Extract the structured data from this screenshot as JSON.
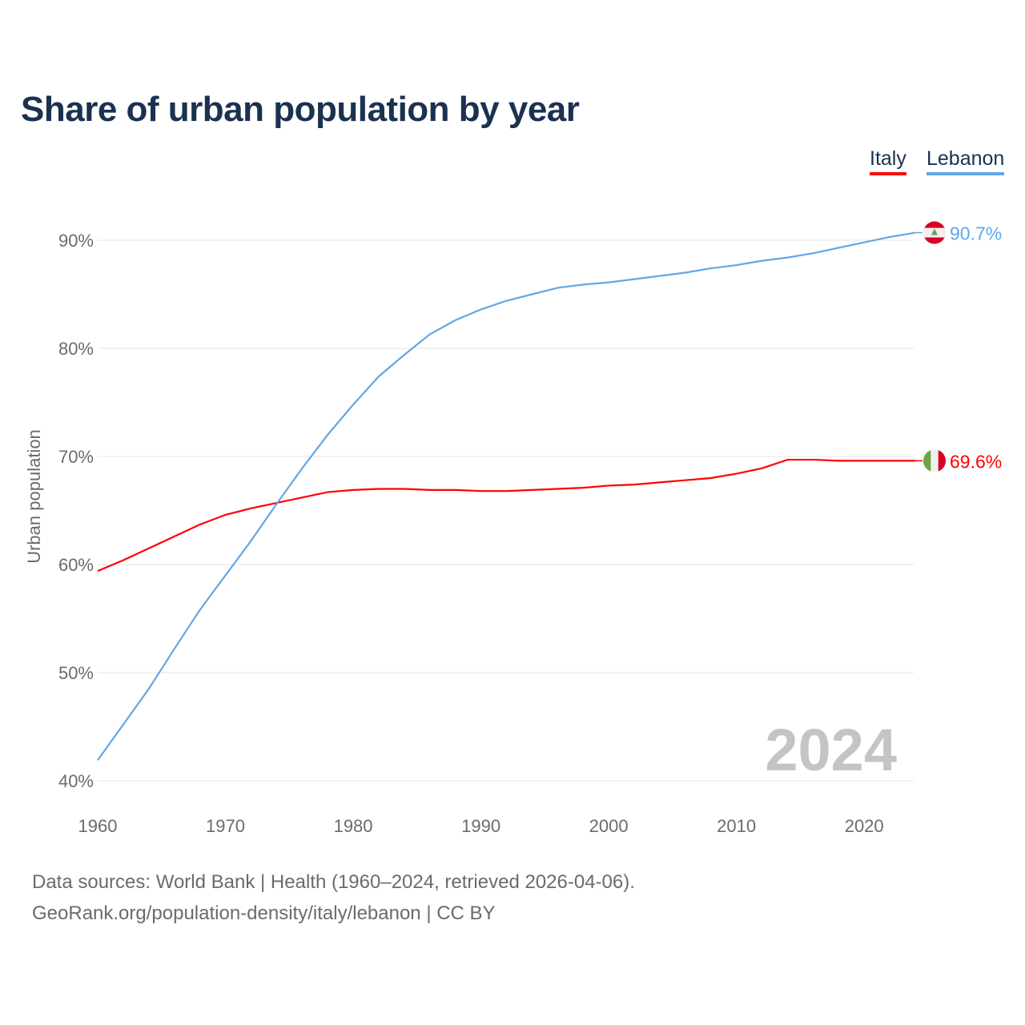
{
  "chart_data": {
    "type": "line",
    "title": "Share of urban population by year",
    "xlabel": "",
    "ylabel": "Urban population",
    "xlim": [
      1960,
      2024
    ],
    "ylim": [
      40,
      90
    ],
    "yticks": [
      40,
      50,
      60,
      70,
      80,
      90
    ],
    "ytick_labels": [
      "40%",
      "50%",
      "60%",
      "70%",
      "80%",
      "90%"
    ],
    "xticks": [
      1960,
      1970,
      1980,
      1990,
      2000,
      2010,
      2020
    ],
    "xtick_labels": [
      "1960",
      "1970",
      "1980",
      "1990",
      "2000",
      "2010",
      "2020"
    ],
    "grid": true,
    "legend_placement": "top-right",
    "year_watermark": "2024",
    "x": [
      1960,
      1962,
      1964,
      1966,
      1968,
      1970,
      1972,
      1974,
      1976,
      1978,
      1980,
      1982,
      1984,
      1986,
      1988,
      1990,
      1992,
      1994,
      1996,
      1998,
      2000,
      2002,
      2004,
      2006,
      2008,
      2010,
      2012,
      2014,
      2016,
      2018,
      2020,
      2022,
      2024
    ],
    "series": [
      {
        "name": "Italy",
        "color": "#ff0000",
        "end_label": "69.6%",
        "values": [
          59.4,
          60.4,
          61.5,
          62.6,
          63.7,
          64.6,
          65.2,
          65.7,
          66.2,
          66.7,
          66.9,
          67.0,
          67.0,
          66.9,
          66.9,
          66.8,
          66.8,
          66.9,
          67.0,
          67.1,
          67.3,
          67.4,
          67.6,
          67.8,
          68.0,
          68.4,
          68.9,
          69.7,
          69.7,
          69.6,
          69.6,
          69.6,
          69.6
        ]
      },
      {
        "name": "Lebanon",
        "color": "#5fa8e8",
        "end_label": "90.7%",
        "values": [
          41.9,
          45.2,
          48.5,
          52.2,
          55.8,
          59.0,
          62.2,
          65.6,
          68.9,
          72.0,
          74.8,
          77.4,
          79.4,
          81.3,
          82.6,
          83.6,
          84.4,
          85.0,
          85.6,
          85.9,
          86.1,
          86.4,
          86.7,
          87.0,
          87.4,
          87.7,
          88.1,
          88.4,
          88.8,
          89.3,
          89.8,
          90.3,
          90.7
        ]
      }
    ]
  },
  "sources": {
    "line1": "Data sources: World Bank | Health (1960–2024, retrieved 2026-04-06).",
    "line2": "GeoRank.org/population-density/italy/lebanon | CC BY"
  }
}
